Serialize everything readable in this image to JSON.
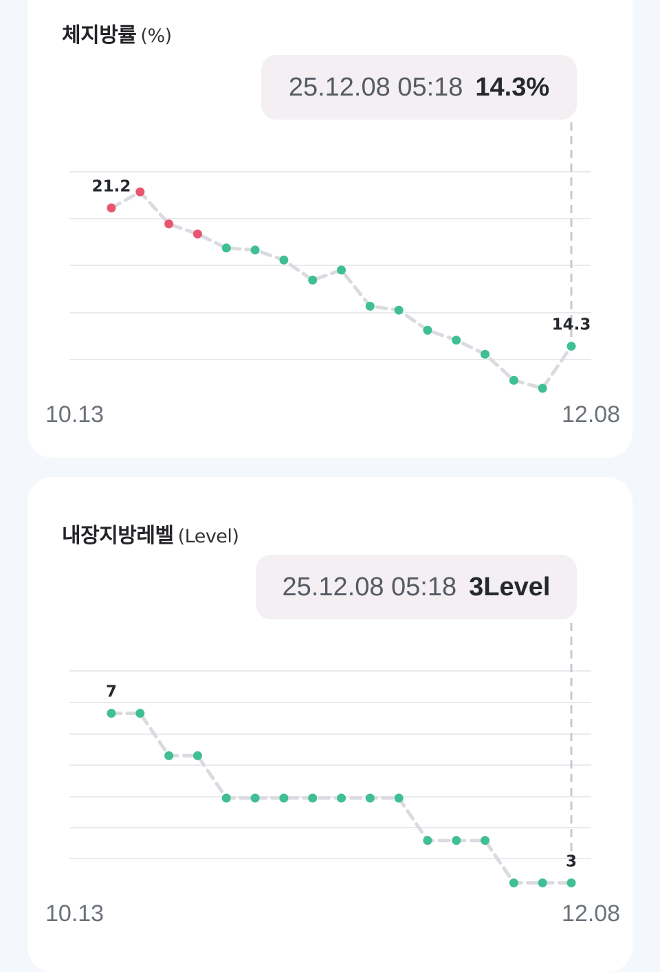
{
  "colors": {
    "normal_point": "#3fbf93",
    "high_point": "#e8576f",
    "line": "#d9dbe1",
    "grid": "#e9eaee",
    "cursor": "#c7c9d0"
  },
  "body_fat": {
    "title": "체지방률",
    "unit": "(%)",
    "tooltip": {
      "date": "25.12.08 05:18",
      "value": "14.3%"
    },
    "x_start": "10.13",
    "x_end": "12.08",
    "first_label": "21.2",
    "last_label": "14.3"
  },
  "visceral_fat": {
    "title": "내장지방레벨",
    "unit": "(Level)",
    "tooltip": {
      "date": "25.12.08 05:18",
      "value": "3Level"
    },
    "x_start": "10.13",
    "x_end": "12.08",
    "first_label": "7",
    "last_label": "3"
  },
  "chart_data": [
    {
      "type": "line",
      "title": "체지방률",
      "ylabel": "(%)",
      "x_range": [
        "10.13",
        "12.08"
      ],
      "values": [
        21.2,
        22.0,
        20.4,
        19.9,
        19.2,
        19.1,
        18.6,
        17.6,
        18.1,
        16.3,
        16.1,
        15.1,
        14.6,
        13.9,
        12.6,
        12.2,
        14.3
      ],
      "high_threshold": 19.6,
      "ylim": [
        13.5,
        23.0
      ],
      "grid": true
    },
    {
      "type": "line",
      "title": "내장지방레벨",
      "ylabel": "(Level)",
      "x_range": [
        "10.13",
        "12.08"
      ],
      "values": [
        7,
        7,
        6,
        6,
        5,
        5,
        5,
        5,
        5,
        5,
        5,
        4,
        4,
        4,
        3,
        3,
        3
      ],
      "ylim": [
        2,
        8
      ],
      "grid": true
    }
  ]
}
